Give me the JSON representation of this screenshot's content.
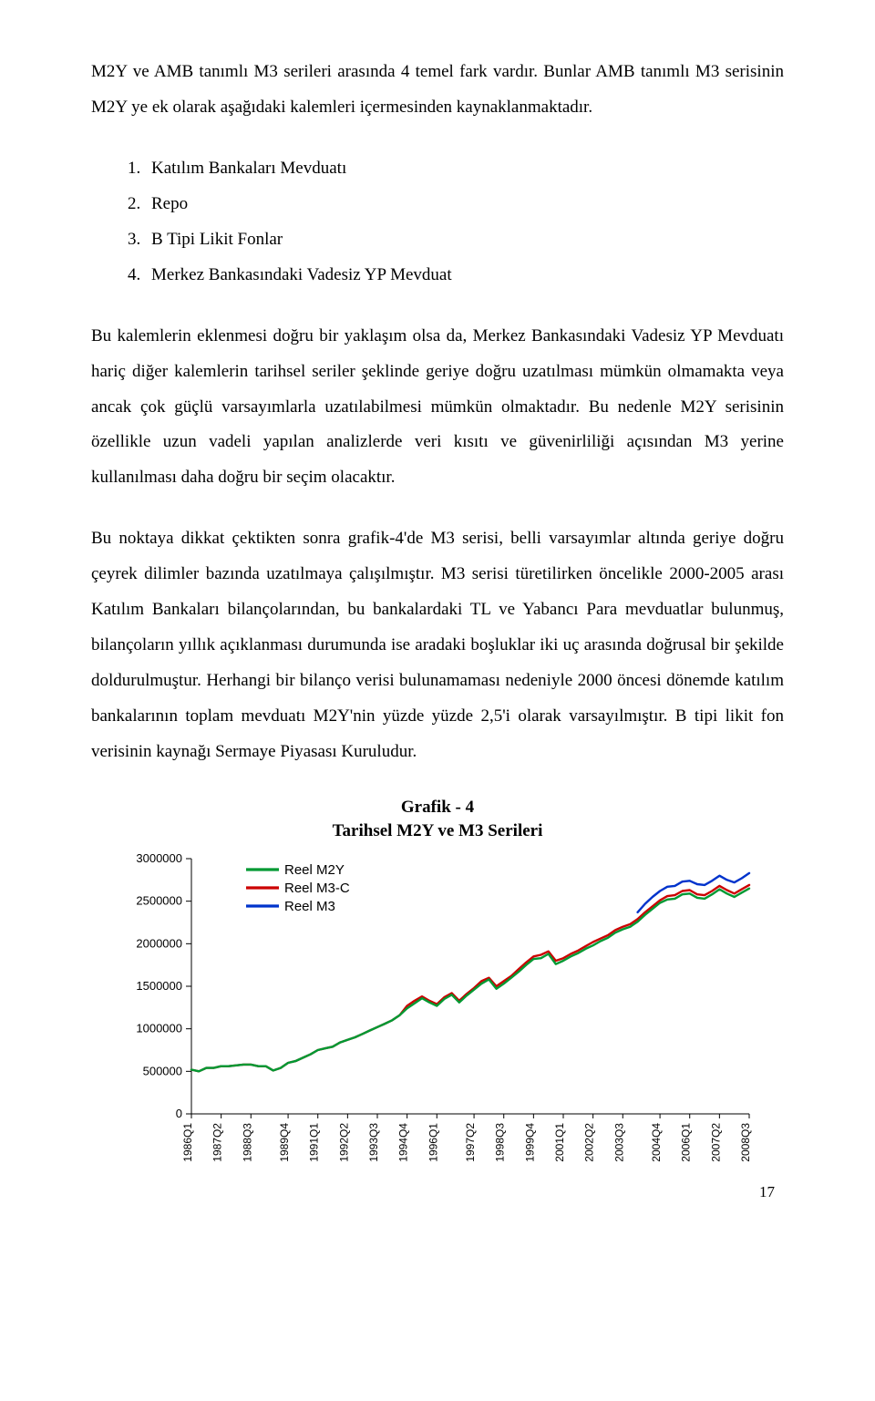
{
  "paragraphs": {
    "p1": "M2Y ve AMB tanımlı M3 serileri arasında 4 temel fark vardır. Bunlar AMB tanımlı M3 serisinin M2Y ye ek olarak aşağıdaki kalemleri içermesinden kaynaklanmaktadır.",
    "p2": "Bu kalemlerin eklenmesi doğru bir yaklaşım olsa da, Merkez Bankasındaki Vadesiz YP Mevduatı hariç diğer kalemlerin tarihsel seriler şeklinde geriye doğru uzatılması mümkün olmamakta veya ancak çok güçlü varsayımlarla uzatılabilmesi mümkün olmaktadır. Bu nedenle M2Y serisinin özellikle uzun vadeli yapılan analizlerde veri kısıtı ve güvenirliliği açısından M3 yerine kullanılması daha doğru bir seçim olacaktır.",
    "p3": "Bu noktaya dikkat çektikten sonra grafik-4'de M3 serisi, belli varsayımlar altında geriye doğru çeyrek dilimler bazında uzatılmaya çalışılmıştır. M3 serisi türetilirken öncelikle 2000-2005 arası Katılım Bankaları bilançolarından, bu bankalardaki TL ve Yabancı Para mevduatlar bulunmuş, bilançoların yıllık açıklanması durumunda ise aradaki boşluklar iki uç arasında doğrusal bir şekilde doldurulmuştur. Herhangi bir bilanço verisi bulunamaması nedeniyle 2000 öncesi dönemde katılım bankalarının toplam mevduatı M2Y'nin yüzde yüzde 2,5'i olarak varsayılmıştır. B tipi likit fon verisinin kaynağı  Sermaye Piyasası Kuruludur."
  },
  "list": {
    "items": [
      "Katılım Bankaları Mevduatı",
      "Repo",
      "B Tipi Likit Fonlar",
      "Merkez Bankasındaki Vadesiz YP Mevduat"
    ]
  },
  "chart": {
    "title_line1": "Grafik - 4",
    "title_line2": "Tarihsel M2Y ve M3 Serileri",
    "type": "line",
    "background_color": "#ffffff",
    "grid_color": "#ffffff",
    "axis_color": "#000000",
    "ylim": [
      0,
      3000000
    ],
    "ytick_step": 500000,
    "yticks": [
      "0",
      "500000",
      "1000000",
      "1500000",
      "2000000",
      "2500000",
      "3000000"
    ],
    "x_labels": [
      "1986Q1",
      "1987Q2",
      "1988Q3",
      "1989Q4",
      "1991Q1",
      "1992Q2",
      "1993Q3",
      "1994Q4",
      "1996Q1",
      "1997Q2",
      "1998Q3",
      "1999Q4",
      "2001Q1",
      "2002Q2",
      "2003Q3",
      "2004Q4",
      "2006Q1",
      "2007Q2",
      "2008Q3"
    ],
    "legend": [
      {
        "label": "Reel M2Y",
        "color": "#009933"
      },
      {
        "label": "Reel M3-C",
        "color": "#cc0000"
      },
      {
        "label": "Reel M3",
        "color": "#0033cc"
      }
    ],
    "line_width": 2.4,
    "legend_line_width": 3.2,
    "series": {
      "reel_m2y": {
        "color": "#009933",
        "values": [
          520000,
          500000,
          540000,
          540000,
          560000,
          560000,
          570000,
          580000,
          580000,
          560000,
          560000,
          510000,
          540000,
          600000,
          620000,
          660000,
          700000,
          750000,
          770000,
          790000,
          840000,
          870000,
          900000,
          940000,
          980000,
          1020000,
          1060000,
          1100000,
          1160000,
          1240000,
          1300000,
          1360000,
          1310000,
          1270000,
          1350000,
          1400000,
          1310000,
          1390000,
          1460000,
          1530000,
          1580000,
          1470000,
          1530000,
          1600000,
          1670000,
          1750000,
          1820000,
          1830000,
          1880000,
          1760000,
          1800000,
          1850000,
          1890000,
          1940000,
          1980000,
          2030000,
          2070000,
          2130000,
          2170000,
          2200000,
          2260000,
          2340000,
          2410000,
          2480000,
          2520000,
          2530000,
          2580000,
          2590000,
          2540000,
          2530000,
          2580000,
          2640000,
          2590000,
          2550000,
          2600000,
          2650000
        ]
      },
      "reel_m3c": {
        "color": "#cc0000",
        "values": [
          520000,
          500000,
          540000,
          540000,
          560000,
          560000,
          570000,
          580000,
          580000,
          560000,
          560000,
          510000,
          540000,
          600000,
          620000,
          660000,
          700000,
          750000,
          770000,
          790000,
          840000,
          870000,
          900000,
          940000,
          980000,
          1020000,
          1060000,
          1100000,
          1160000,
          1270000,
          1330000,
          1380000,
          1330000,
          1290000,
          1370000,
          1420000,
          1330000,
          1410000,
          1480000,
          1560000,
          1600000,
          1500000,
          1560000,
          1620000,
          1700000,
          1780000,
          1850000,
          1870000,
          1910000,
          1800000,
          1830000,
          1880000,
          1920000,
          1970000,
          2020000,
          2060000,
          2100000,
          2160000,
          2200000,
          2230000,
          2290000,
          2370000,
          2440000,
          2510000,
          2560000,
          2570000,
          2620000,
          2630000,
          2580000,
          2570000,
          2620000,
          2680000,
          2630000,
          2590000,
          2640000,
          2690000
        ]
      },
      "reel_m3": {
        "color": "#0033cc",
        "values": [
          null,
          null,
          null,
          null,
          null,
          null,
          null,
          null,
          null,
          null,
          null,
          null,
          null,
          null,
          null,
          null,
          null,
          null,
          null,
          null,
          null,
          null,
          null,
          null,
          null,
          null,
          null,
          null,
          null,
          null,
          null,
          null,
          null,
          null,
          null,
          null,
          null,
          null,
          null,
          null,
          null,
          null,
          null,
          null,
          null,
          null,
          null,
          null,
          null,
          null,
          null,
          null,
          null,
          null,
          null,
          null,
          null,
          null,
          null,
          null,
          2370000,
          2470000,
          2550000,
          2620000,
          2670000,
          2680000,
          2730000,
          2740000,
          2700000,
          2690000,
          2740000,
          2800000,
          2750000,
          2720000,
          2770000,
          2830000
        ]
      }
    }
  },
  "page_number": "17"
}
